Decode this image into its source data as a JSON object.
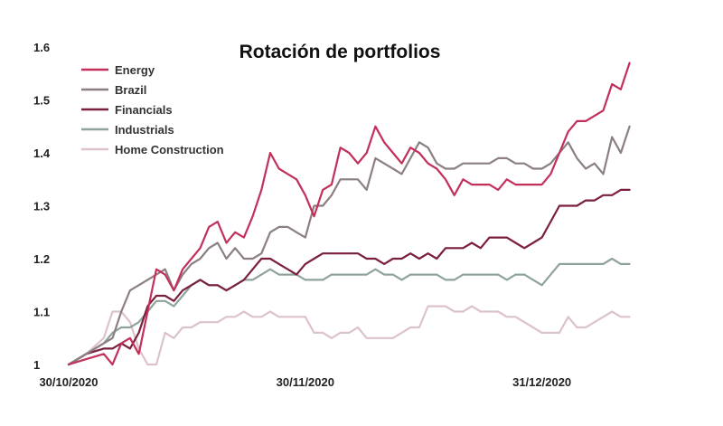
{
  "chart_data": {
    "type": "line",
    "title": "Rotación de portfolios",
    "xlabel": "",
    "ylabel": "",
    "ylim": [
      1,
      1.6
    ],
    "yticks": [
      "1",
      "1.1",
      "1.2",
      "1.3",
      "1.4",
      "1.5",
      "1.6"
    ],
    "x_range": [
      0,
      66
    ],
    "xticks": [
      {
        "x": 0,
        "label": "30/10/2020"
      },
      {
        "x": 27,
        "label": "30/11/2020"
      },
      {
        "x": 54,
        "label": "31/12/2020"
      }
    ],
    "legend_position": "top-left",
    "grid": false,
    "series": [
      {
        "name": "Energy",
        "color": "#c2305a",
        "points": [
          [
            0,
            1.0
          ],
          [
            2,
            1.01
          ],
          [
            4,
            1.02
          ],
          [
            5,
            1.0
          ],
          [
            6,
            1.04
          ],
          [
            7,
            1.05
          ],
          [
            8,
            1.02
          ],
          [
            9,
            1.1
          ],
          [
            10,
            1.18
          ],
          [
            11,
            1.17
          ],
          [
            12,
            1.14
          ],
          [
            13,
            1.18
          ],
          [
            14,
            1.2
          ],
          [
            15,
            1.22
          ],
          [
            16,
            1.26
          ],
          [
            17,
            1.27
          ],
          [
            18,
            1.23
          ],
          [
            19,
            1.25
          ],
          [
            20,
            1.24
          ],
          [
            21,
            1.28
          ],
          [
            22,
            1.33
          ],
          [
            23,
            1.4
          ],
          [
            24,
            1.37
          ],
          [
            25,
            1.36
          ],
          [
            26,
            1.35
          ],
          [
            27,
            1.32
          ],
          [
            28,
            1.28
          ],
          [
            29,
            1.33
          ],
          [
            30,
            1.34
          ],
          [
            31,
            1.41
          ],
          [
            32,
            1.4
          ],
          [
            33,
            1.38
          ],
          [
            34,
            1.4
          ],
          [
            35,
            1.45
          ],
          [
            36,
            1.42
          ],
          [
            37,
            1.4
          ],
          [
            38,
            1.38
          ],
          [
            39,
            1.41
          ],
          [
            40,
            1.4
          ],
          [
            41,
            1.38
          ],
          [
            42,
            1.37
          ],
          [
            43,
            1.35
          ],
          [
            44,
            1.32
          ],
          [
            45,
            1.35
          ],
          [
            46,
            1.34
          ],
          [
            47,
            1.34
          ],
          [
            48,
            1.34
          ],
          [
            49,
            1.33
          ],
          [
            50,
            1.35
          ],
          [
            51,
            1.34
          ],
          [
            52,
            1.34
          ],
          [
            53,
            1.34
          ],
          [
            54,
            1.34
          ],
          [
            55,
            1.36
          ],
          [
            56,
            1.4
          ],
          [
            57,
            1.44
          ],
          [
            58,
            1.46
          ],
          [
            59,
            1.46
          ],
          [
            60,
            1.47
          ],
          [
            61,
            1.48
          ],
          [
            62,
            1.53
          ],
          [
            63,
            1.52
          ],
          [
            64,
            1.57
          ]
        ]
      },
      {
        "name": "Brazil",
        "color": "#8b7f82",
        "points": [
          [
            0,
            1.0
          ],
          [
            2,
            1.02
          ],
          [
            4,
            1.04
          ],
          [
            5,
            1.05
          ],
          [
            6,
            1.1
          ],
          [
            7,
            1.14
          ],
          [
            8,
            1.15
          ],
          [
            9,
            1.16
          ],
          [
            10,
            1.17
          ],
          [
            11,
            1.18
          ],
          [
            12,
            1.14
          ],
          [
            13,
            1.17
          ],
          [
            14,
            1.19
          ],
          [
            15,
            1.2
          ],
          [
            16,
            1.22
          ],
          [
            17,
            1.23
          ],
          [
            18,
            1.2
          ],
          [
            19,
            1.22
          ],
          [
            20,
            1.2
          ],
          [
            21,
            1.2
          ],
          [
            22,
            1.21
          ],
          [
            23,
            1.25
          ],
          [
            24,
            1.26
          ],
          [
            25,
            1.26
          ],
          [
            26,
            1.25
          ],
          [
            27,
            1.24
          ],
          [
            28,
            1.3
          ],
          [
            29,
            1.3
          ],
          [
            30,
            1.32
          ],
          [
            31,
            1.35
          ],
          [
            32,
            1.35
          ],
          [
            33,
            1.35
          ],
          [
            34,
            1.33
          ],
          [
            35,
            1.39
          ],
          [
            36,
            1.38
          ],
          [
            37,
            1.37
          ],
          [
            38,
            1.36
          ],
          [
            39,
            1.39
          ],
          [
            40,
            1.42
          ],
          [
            41,
            1.41
          ],
          [
            42,
            1.38
          ],
          [
            43,
            1.37
          ],
          [
            44,
            1.37
          ],
          [
            45,
            1.38
          ],
          [
            46,
            1.38
          ],
          [
            47,
            1.38
          ],
          [
            48,
            1.38
          ],
          [
            49,
            1.39
          ],
          [
            50,
            1.39
          ],
          [
            51,
            1.38
          ],
          [
            52,
            1.38
          ],
          [
            53,
            1.37
          ],
          [
            54,
            1.37
          ],
          [
            55,
            1.38
          ],
          [
            56,
            1.4
          ],
          [
            57,
            1.42
          ],
          [
            58,
            1.39
          ],
          [
            59,
            1.37
          ],
          [
            60,
            1.38
          ],
          [
            61,
            1.36
          ],
          [
            62,
            1.43
          ],
          [
            63,
            1.4
          ],
          [
            64,
            1.45
          ]
        ]
      },
      {
        "name": "Financials",
        "color": "#7a1f3d",
        "points": [
          [
            0,
            1.0
          ],
          [
            2,
            1.02
          ],
          [
            4,
            1.03
          ],
          [
            5,
            1.03
          ],
          [
            6,
            1.04
          ],
          [
            7,
            1.03
          ],
          [
            8,
            1.06
          ],
          [
            9,
            1.11
          ],
          [
            10,
            1.13
          ],
          [
            11,
            1.13
          ],
          [
            12,
            1.12
          ],
          [
            13,
            1.14
          ],
          [
            14,
            1.15
          ],
          [
            15,
            1.16
          ],
          [
            16,
            1.15
          ],
          [
            17,
            1.15
          ],
          [
            18,
            1.14
          ],
          [
            19,
            1.15
          ],
          [
            20,
            1.16
          ],
          [
            21,
            1.18
          ],
          [
            22,
            1.2
          ],
          [
            23,
            1.2
          ],
          [
            24,
            1.19
          ],
          [
            25,
            1.18
          ],
          [
            26,
            1.17
          ],
          [
            27,
            1.19
          ],
          [
            28,
            1.2
          ],
          [
            29,
            1.21
          ],
          [
            30,
            1.21
          ],
          [
            31,
            1.21
          ],
          [
            32,
            1.21
          ],
          [
            33,
            1.21
          ],
          [
            34,
            1.2
          ],
          [
            35,
            1.2
          ],
          [
            36,
            1.19
          ],
          [
            37,
            1.2
          ],
          [
            38,
            1.2
          ],
          [
            39,
            1.21
          ],
          [
            40,
            1.2
          ],
          [
            41,
            1.21
          ],
          [
            42,
            1.2
          ],
          [
            43,
            1.22
          ],
          [
            44,
            1.22
          ],
          [
            45,
            1.22
          ],
          [
            46,
            1.23
          ],
          [
            47,
            1.22
          ],
          [
            48,
            1.24
          ],
          [
            49,
            1.24
          ],
          [
            50,
            1.24
          ],
          [
            51,
            1.23
          ],
          [
            52,
            1.22
          ],
          [
            53,
            1.23
          ],
          [
            54,
            1.24
          ],
          [
            55,
            1.27
          ],
          [
            56,
            1.3
          ],
          [
            57,
            1.3
          ],
          [
            58,
            1.3
          ],
          [
            59,
            1.31
          ],
          [
            60,
            1.31
          ],
          [
            61,
            1.32
          ],
          [
            62,
            1.32
          ],
          [
            63,
            1.33
          ],
          [
            64,
            1.33
          ]
        ]
      },
      {
        "name": "Industrials",
        "color": "#8fa39b",
        "points": [
          [
            0,
            1.0
          ],
          [
            2,
            1.02
          ],
          [
            4,
            1.04
          ],
          [
            5,
            1.06
          ],
          [
            6,
            1.07
          ],
          [
            7,
            1.07
          ],
          [
            8,
            1.08
          ],
          [
            9,
            1.1
          ],
          [
            10,
            1.12
          ],
          [
            11,
            1.12
          ],
          [
            12,
            1.11
          ],
          [
            13,
            1.13
          ],
          [
            14,
            1.15
          ],
          [
            15,
            1.16
          ],
          [
            16,
            1.15
          ],
          [
            17,
            1.15
          ],
          [
            18,
            1.14
          ],
          [
            19,
            1.15
          ],
          [
            20,
            1.16
          ],
          [
            21,
            1.16
          ],
          [
            22,
            1.17
          ],
          [
            23,
            1.18
          ],
          [
            24,
            1.17
          ],
          [
            25,
            1.17
          ],
          [
            26,
            1.17
          ],
          [
            27,
            1.16
          ],
          [
            28,
            1.16
          ],
          [
            29,
            1.16
          ],
          [
            30,
            1.17
          ],
          [
            31,
            1.17
          ],
          [
            32,
            1.17
          ],
          [
            33,
            1.17
          ],
          [
            34,
            1.17
          ],
          [
            35,
            1.18
          ],
          [
            36,
            1.17
          ],
          [
            37,
            1.17
          ],
          [
            38,
            1.16
          ],
          [
            39,
            1.17
          ],
          [
            40,
            1.17
          ],
          [
            41,
            1.17
          ],
          [
            42,
            1.17
          ],
          [
            43,
            1.16
          ],
          [
            44,
            1.16
          ],
          [
            45,
            1.17
          ],
          [
            46,
            1.17
          ],
          [
            47,
            1.17
          ],
          [
            48,
            1.17
          ],
          [
            49,
            1.17
          ],
          [
            50,
            1.16
          ],
          [
            51,
            1.17
          ],
          [
            52,
            1.17
          ],
          [
            53,
            1.16
          ],
          [
            54,
            1.15
          ],
          [
            55,
            1.17
          ],
          [
            56,
            1.19
          ],
          [
            57,
            1.19
          ],
          [
            58,
            1.19
          ],
          [
            59,
            1.19
          ],
          [
            60,
            1.19
          ],
          [
            61,
            1.19
          ],
          [
            62,
            1.2
          ],
          [
            63,
            1.19
          ],
          [
            64,
            1.19
          ]
        ]
      },
      {
        "name": "Home Construction",
        "color": "#dcc3c9",
        "points": [
          [
            0,
            1.0
          ],
          [
            2,
            1.02
          ],
          [
            4,
            1.05
          ],
          [
            5,
            1.1
          ],
          [
            6,
            1.1
          ],
          [
            7,
            1.08
          ],
          [
            8,
            1.03
          ],
          [
            9,
            1.0
          ],
          [
            10,
            1.0
          ],
          [
            11,
            1.06
          ],
          [
            12,
            1.05
          ],
          [
            13,
            1.07
          ],
          [
            14,
            1.07
          ],
          [
            15,
            1.08
          ],
          [
            16,
            1.08
          ],
          [
            17,
            1.08
          ],
          [
            18,
            1.09
          ],
          [
            19,
            1.09
          ],
          [
            20,
            1.1
          ],
          [
            21,
            1.09
          ],
          [
            22,
            1.09
          ],
          [
            23,
            1.1
          ],
          [
            24,
            1.09
          ],
          [
            25,
            1.09
          ],
          [
            26,
            1.09
          ],
          [
            27,
            1.09
          ],
          [
            28,
            1.06
          ],
          [
            29,
            1.06
          ],
          [
            30,
            1.05
          ],
          [
            31,
            1.06
          ],
          [
            32,
            1.06
          ],
          [
            33,
            1.07
          ],
          [
            34,
            1.05
          ],
          [
            35,
            1.05
          ],
          [
            36,
            1.05
          ],
          [
            37,
            1.05
          ],
          [
            38,
            1.06
          ],
          [
            39,
            1.07
          ],
          [
            40,
            1.07
          ],
          [
            41,
            1.11
          ],
          [
            42,
            1.11
          ],
          [
            43,
            1.11
          ],
          [
            44,
            1.1
          ],
          [
            45,
            1.1
          ],
          [
            46,
            1.11
          ],
          [
            47,
            1.1
          ],
          [
            48,
            1.1
          ],
          [
            49,
            1.1
          ],
          [
            50,
            1.09
          ],
          [
            51,
            1.09
          ],
          [
            52,
            1.08
          ],
          [
            53,
            1.07
          ],
          [
            54,
            1.06
          ],
          [
            55,
            1.06
          ],
          [
            56,
            1.06
          ],
          [
            57,
            1.09
          ],
          [
            58,
            1.07
          ],
          [
            59,
            1.07
          ],
          [
            60,
            1.08
          ],
          [
            61,
            1.09
          ],
          [
            62,
            1.1
          ],
          [
            63,
            1.09
          ],
          [
            64,
            1.09
          ]
        ]
      }
    ]
  }
}
